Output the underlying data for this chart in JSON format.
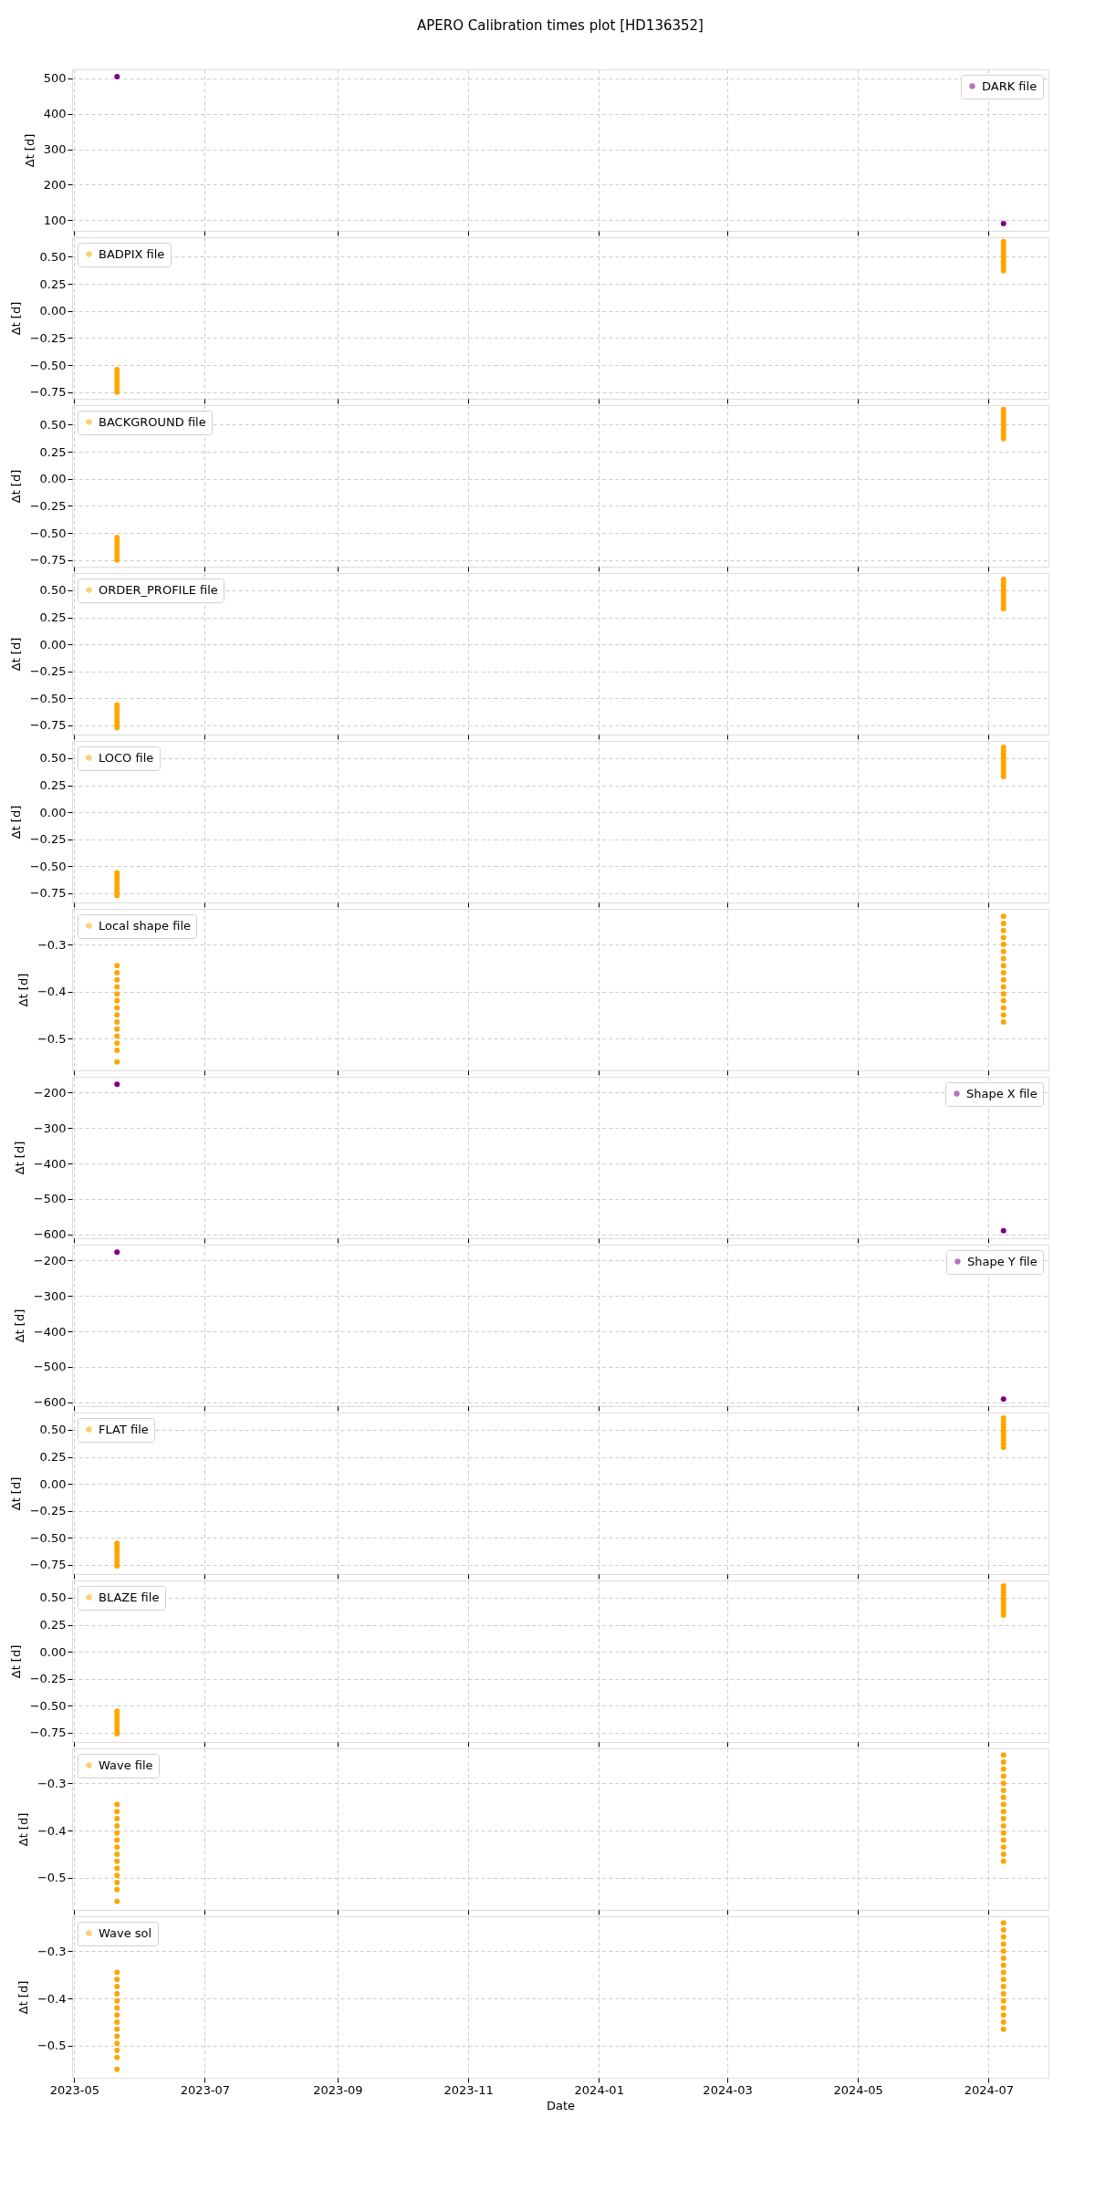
{
  "chart_data": [
    {
      "type": "scatter",
      "title": "APERO Calibration times plot [HD136352]",
      "ylabel": "Δt [d]",
      "legend": "top right",
      "grid": true,
      "marker": "circle",
      "tick_labels": "y",
      "xlim": [
        "2023-04-30",
        "2024-07-29"
      ],
      "xticks": [
        "2023-05",
        "2023-07",
        "2023-09",
        "2023-11",
        "2024-01",
        "2024-03",
        "2024-05",
        "2024-07"
      ],
      "ylim": [
        69.5,
        525.5
      ],
      "yticks": [
        100,
        200,
        300,
        400,
        500
      ],
      "series": [
        {
          "name": "DARK file",
          "color": "#800080",
          "x": [
            "2023-05-21",
            "2024-07-08"
          ],
          "values": [
            505,
            90
          ]
        }
      ]
    },
    {
      "type": "scatter",
      "ylabel": "Δt [d]",
      "legend": "top left",
      "grid": true,
      "marker": "circle",
      "tick_labels": "y",
      "xlim": [
        "2023-04-30",
        "2024-07-29"
      ],
      "xticks": [
        "2023-05",
        "2023-07",
        "2023-09",
        "2023-11",
        "2024-01",
        "2024-03",
        "2024-05",
        "2024-07"
      ],
      "ylim": [
        -0.81,
        0.68
      ],
      "yticks": [
        {
          "value": -0.75,
          "label": "−0.75"
        },
        {
          "value": -0.5,
          "label": "−0.50"
        },
        {
          "value": -0.25,
          "label": "−0.25"
        },
        {
          "value": 0,
          "label": "0.00"
        },
        {
          "value": 0.25,
          "label": "0.25"
        },
        {
          "value": 0.5,
          "label": "0.50"
        }
      ],
      "series": [
        {
          "name": "BADPIX file",
          "color": "#ffa500",
          "x": [
            "2023-05-21",
            "2023-05-21",
            "2023-05-21",
            "2023-05-21",
            "2023-05-21",
            "2023-05-21",
            "2023-05-21",
            "2023-05-21",
            "2024-07-08",
            "2024-07-08",
            "2024-07-08",
            "2024-07-08",
            "2024-07-08",
            "2024-07-08",
            "2024-07-08",
            "2024-07-08",
            "2024-07-08",
            "2024-07-08"
          ],
          "values": [
            -0.54,
            -0.57,
            -0.6,
            -0.63,
            -0.66,
            -0.69,
            -0.72,
            -0.75,
            0.37,
            0.4,
            0.43,
            0.46,
            0.49,
            0.52,
            0.55,
            0.58,
            0.61,
            0.64
          ]
        }
      ]
    },
    {
      "type": "scatter",
      "ylabel": "Δt [d]",
      "legend": "top left",
      "grid": true,
      "marker": "circle",
      "tick_labels": "y",
      "xlim": [
        "2023-04-30",
        "2024-07-29"
      ],
      "xticks": [
        "2023-05",
        "2023-07",
        "2023-09",
        "2023-11",
        "2024-01",
        "2024-03",
        "2024-05",
        "2024-07"
      ],
      "ylim": [
        -0.81,
        0.68
      ],
      "yticks": [
        {
          "value": -0.75,
          "label": "−0.75"
        },
        {
          "value": -0.5,
          "label": "−0.50"
        },
        {
          "value": -0.25,
          "label": "−0.25"
        },
        {
          "value": 0,
          "label": "0.00"
        },
        {
          "value": 0.25,
          "label": "0.25"
        },
        {
          "value": 0.5,
          "label": "0.50"
        }
      ],
      "series": [
        {
          "name": "BACKGROUND file",
          "color": "#ffa500",
          "x": [
            "2023-05-21",
            "2023-05-21",
            "2023-05-21",
            "2023-05-21",
            "2023-05-21",
            "2023-05-21",
            "2023-05-21",
            "2023-05-21",
            "2024-07-08",
            "2024-07-08",
            "2024-07-08",
            "2024-07-08",
            "2024-07-08",
            "2024-07-08",
            "2024-07-08",
            "2024-07-08",
            "2024-07-08",
            "2024-07-08"
          ],
          "values": [
            -0.54,
            -0.57,
            -0.6,
            -0.63,
            -0.66,
            -0.69,
            -0.72,
            -0.75,
            0.37,
            0.4,
            0.43,
            0.46,
            0.49,
            0.52,
            0.55,
            0.58,
            0.61,
            0.64
          ]
        }
      ]
    },
    {
      "type": "scatter",
      "ylabel": "Δt [d]",
      "legend": "top left",
      "grid": true,
      "marker": "circle",
      "tick_labels": "y",
      "xlim": [
        "2023-04-30",
        "2024-07-29"
      ],
      "xticks": [
        "2023-05",
        "2023-07",
        "2023-09",
        "2023-11",
        "2024-01",
        "2024-03",
        "2024-05",
        "2024-07"
      ],
      "ylim": [
        -0.835,
        0.66
      ],
      "yticks": [
        {
          "value": -0.75,
          "label": "−0.75"
        },
        {
          "value": -0.5,
          "label": "−0.50"
        },
        {
          "value": -0.25,
          "label": "−0.25"
        },
        {
          "value": 0,
          "label": "0.00"
        },
        {
          "value": 0.25,
          "label": "0.25"
        },
        {
          "value": 0.5,
          "label": "0.50"
        }
      ],
      "series": [
        {
          "name": "ORDER_PROFILE file",
          "color": "#ffa500",
          "x": [
            "2023-05-21",
            "2023-05-21",
            "2023-05-21",
            "2023-05-21",
            "2023-05-21",
            "2023-05-21",
            "2023-05-21",
            "2023-05-21",
            "2024-07-08",
            "2024-07-08",
            "2024-07-08",
            "2024-07-08",
            "2024-07-08",
            "2024-07-08",
            "2024-07-08",
            "2024-07-08",
            "2024-07-08",
            "2024-07-08"
          ],
          "values": [
            -0.56,
            -0.59,
            -0.62,
            -0.65,
            -0.68,
            -0.71,
            -0.74,
            -0.77,
            0.33,
            0.36,
            0.39,
            0.42,
            0.45,
            0.48,
            0.51,
            0.54,
            0.57,
            0.6
          ]
        }
      ]
    },
    {
      "type": "scatter",
      "ylabel": "Δt [d]",
      "legend": "top left",
      "grid": true,
      "marker": "circle",
      "tick_labels": "y",
      "xlim": [
        "2023-04-30",
        "2024-07-29"
      ],
      "xticks": [
        "2023-05",
        "2023-07",
        "2023-09",
        "2023-11",
        "2024-01",
        "2024-03",
        "2024-05",
        "2024-07"
      ],
      "ylim": [
        -0.835,
        0.66
      ],
      "yticks": [
        {
          "value": -0.75,
          "label": "−0.75"
        },
        {
          "value": -0.5,
          "label": "−0.50"
        },
        {
          "value": -0.25,
          "label": "−0.25"
        },
        {
          "value": 0,
          "label": "0.00"
        },
        {
          "value": 0.25,
          "label": "0.25"
        },
        {
          "value": 0.5,
          "label": "0.50"
        }
      ],
      "series": [
        {
          "name": "LOCO file",
          "color": "#ffa500",
          "x": [
            "2023-05-21",
            "2023-05-21",
            "2023-05-21",
            "2023-05-21",
            "2023-05-21",
            "2023-05-21",
            "2023-05-21",
            "2023-05-21",
            "2024-07-08",
            "2024-07-08",
            "2024-07-08",
            "2024-07-08",
            "2024-07-08",
            "2024-07-08",
            "2024-07-08",
            "2024-07-08",
            "2024-07-08",
            "2024-07-08"
          ],
          "values": [
            -0.56,
            -0.59,
            -0.62,
            -0.65,
            -0.68,
            -0.71,
            -0.74,
            -0.77,
            0.33,
            0.36,
            0.39,
            0.42,
            0.45,
            0.48,
            0.51,
            0.54,
            0.57,
            0.6
          ]
        }
      ]
    },
    {
      "type": "scatter",
      "ylabel": "Δt [d]",
      "legend": "top left",
      "grid": true,
      "marker": "circle",
      "tick_labels": "y",
      "xlim": [
        "2023-04-30",
        "2024-07-29"
      ],
      "xticks": [
        "2023-05",
        "2023-07",
        "2023-09",
        "2023-11",
        "2024-01",
        "2024-03",
        "2024-05",
        "2024-07"
      ],
      "ylim": [
        -0.568,
        -0.224
      ],
      "yticks": [
        {
          "value": -0.5,
          "label": "−0.5"
        },
        {
          "value": -0.4,
          "label": "−0.4"
        },
        {
          "value": -0.3,
          "label": "−0.3"
        }
      ],
      "series": [
        {
          "name": "Local shape file",
          "color": "#ffa500",
          "x": [
            "2023-05-21",
            "2023-05-21",
            "2023-05-21",
            "2023-05-21",
            "2023-05-21",
            "2023-05-21",
            "2023-05-21",
            "2023-05-21",
            "2023-05-21",
            "2023-05-21",
            "2023-05-21",
            "2023-05-21",
            "2023-05-21",
            "2023-05-21",
            "2024-07-08",
            "2024-07-08",
            "2024-07-08",
            "2024-07-08",
            "2024-07-08",
            "2024-07-08",
            "2024-07-08",
            "2024-07-08",
            "2024-07-08",
            "2024-07-08",
            "2024-07-08",
            "2024-07-08",
            "2024-07-08",
            "2024-07-08",
            "2024-07-08",
            "2024-07-08"
          ],
          "values": [
            -0.345,
            -0.36,
            -0.375,
            -0.39,
            -0.405,
            -0.42,
            -0.435,
            -0.45,
            -0.465,
            -0.48,
            -0.495,
            -0.51,
            -0.525,
            -0.55,
            -0.24,
            -0.255,
            -0.27,
            -0.285,
            -0.3,
            -0.315,
            -0.33,
            -0.345,
            -0.36,
            -0.375,
            -0.39,
            -0.405,
            -0.42,
            -0.435,
            -0.45,
            -0.465
          ]
        }
      ]
    },
    {
      "type": "scatter",
      "ylabel": "Δt [d]",
      "legend": "top right",
      "grid": true,
      "marker": "circle",
      "tick_labels": "y",
      "xlim": [
        "2023-04-30",
        "2024-07-29"
      ],
      "xticks": [
        "2023-05",
        "2023-07",
        "2023-09",
        "2023-11",
        "2024-01",
        "2024-03",
        "2024-05",
        "2024-07"
      ],
      "ylim": [
        -611,
        -155
      ],
      "yticks": [
        {
          "value": -600,
          "label": "−600"
        },
        {
          "value": -500,
          "label": "−500"
        },
        {
          "value": -400,
          "label": "−400"
        },
        {
          "value": -300,
          "label": "−300"
        },
        {
          "value": -200,
          "label": "−200"
        }
      ],
      "series": [
        {
          "name": "Shape X file",
          "color": "#800080",
          "x": [
            "2023-05-21",
            "2024-07-08"
          ],
          "values": [
            -176,
            -590
          ]
        }
      ]
    },
    {
      "type": "scatter",
      "ylabel": "Δt [d]",
      "legend": "top right",
      "grid": true,
      "marker": "circle",
      "tick_labels": "y",
      "xlim": [
        "2023-04-30",
        "2024-07-29"
      ],
      "xticks": [
        "2023-05",
        "2023-07",
        "2023-09",
        "2023-11",
        "2024-01",
        "2024-03",
        "2024-05",
        "2024-07"
      ],
      "ylim": [
        -611,
        -155
      ],
      "yticks": [
        {
          "value": -600,
          "label": "−600"
        },
        {
          "value": -500,
          "label": "−500"
        },
        {
          "value": -400,
          "label": "−400"
        },
        {
          "value": -300,
          "label": "−300"
        },
        {
          "value": -200,
          "label": "−200"
        }
      ],
      "series": [
        {
          "name": "Shape Y file",
          "color": "#800080",
          "x": [
            "2023-05-21",
            "2024-07-08"
          ],
          "values": [
            -176,
            -591
          ]
        }
      ]
    },
    {
      "type": "scatter",
      "ylabel": "Δt [d]",
      "legend": "top left",
      "grid": true,
      "marker": "circle",
      "tick_labels": "y",
      "xlim": [
        "2023-04-30",
        "2024-07-29"
      ],
      "xticks": [
        "2023-05",
        "2023-07",
        "2023-09",
        "2023-11",
        "2024-01",
        "2024-03",
        "2024-05",
        "2024-07"
      ],
      "ylim": [
        -0.835,
        0.66
      ],
      "yticks": [
        {
          "value": -0.75,
          "label": "−0.75"
        },
        {
          "value": -0.5,
          "label": "−0.50"
        },
        {
          "value": -0.25,
          "label": "−0.25"
        },
        {
          "value": 0,
          "label": "0.00"
        },
        {
          "value": 0.25,
          "label": "0.25"
        },
        {
          "value": 0.5,
          "label": "0.50"
        }
      ],
      "series": [
        {
          "name": "FLAT file",
          "color": "#ffa500",
          "x": [
            "2023-05-21",
            "2023-05-21",
            "2023-05-21",
            "2023-05-21",
            "2023-05-21",
            "2023-05-21",
            "2023-05-21",
            "2023-05-21",
            "2024-07-08",
            "2024-07-08",
            "2024-07-08",
            "2024-07-08",
            "2024-07-08",
            "2024-07-08",
            "2024-07-08",
            "2024-07-08",
            "2024-07-08",
            "2024-07-08"
          ],
          "values": [
            -0.55,
            -0.58,
            -0.61,
            -0.64,
            -0.67,
            -0.7,
            -0.73,
            -0.76,
            0.34,
            0.37,
            0.4,
            0.43,
            0.46,
            0.49,
            0.52,
            0.55,
            0.58,
            0.61
          ]
        }
      ]
    },
    {
      "type": "scatter",
      "ylabel": "Δt [d]",
      "legend": "top left",
      "grid": true,
      "marker": "circle",
      "tick_labels": "y",
      "xlim": [
        "2023-04-30",
        "2024-07-29"
      ],
      "xticks": [
        "2023-05",
        "2023-07",
        "2023-09",
        "2023-11",
        "2024-01",
        "2024-03",
        "2024-05",
        "2024-07"
      ],
      "ylim": [
        -0.835,
        0.66
      ],
      "yticks": [
        {
          "value": -0.75,
          "label": "−0.75"
        },
        {
          "value": -0.5,
          "label": "−0.50"
        },
        {
          "value": -0.25,
          "label": "−0.25"
        },
        {
          "value": 0,
          "label": "0.00"
        },
        {
          "value": 0.25,
          "label": "0.25"
        },
        {
          "value": 0.5,
          "label": "0.50"
        }
      ],
      "series": [
        {
          "name": "BLAZE file",
          "color": "#ffa500",
          "x": [
            "2023-05-21",
            "2023-05-21",
            "2023-05-21",
            "2023-05-21",
            "2023-05-21",
            "2023-05-21",
            "2023-05-21",
            "2023-05-21",
            "2024-07-08",
            "2024-07-08",
            "2024-07-08",
            "2024-07-08",
            "2024-07-08",
            "2024-07-08",
            "2024-07-08",
            "2024-07-08",
            "2024-07-08",
            "2024-07-08"
          ],
          "values": [
            -0.55,
            -0.58,
            -0.61,
            -0.64,
            -0.67,
            -0.7,
            -0.73,
            -0.76,
            0.34,
            0.37,
            0.4,
            0.43,
            0.46,
            0.49,
            0.52,
            0.55,
            0.58,
            0.61
          ]
        }
      ]
    },
    {
      "type": "scatter",
      "ylabel": "Δt [d]",
      "legend": "top left",
      "grid": true,
      "marker": "circle",
      "tick_labels": "y",
      "xlim": [
        "2023-04-30",
        "2024-07-29"
      ],
      "xticks": [
        "2023-05",
        "2023-07",
        "2023-09",
        "2023-11",
        "2024-01",
        "2024-03",
        "2024-05",
        "2024-07"
      ],
      "ylim": [
        -0.568,
        -0.226
      ],
      "yticks": [
        {
          "value": -0.5,
          "label": "−0.5"
        },
        {
          "value": -0.4,
          "label": "−0.4"
        },
        {
          "value": -0.3,
          "label": "−0.3"
        }
      ],
      "series": [
        {
          "name": "Wave file",
          "color": "#ffa500",
          "x": [
            "2023-05-21",
            "2023-05-21",
            "2023-05-21",
            "2023-05-21",
            "2023-05-21",
            "2023-05-21",
            "2023-05-21",
            "2023-05-21",
            "2023-05-21",
            "2023-05-21",
            "2023-05-21",
            "2023-05-21",
            "2023-05-21",
            "2023-05-21",
            "2024-07-08",
            "2024-07-08",
            "2024-07-08",
            "2024-07-08",
            "2024-07-08",
            "2024-07-08",
            "2024-07-08",
            "2024-07-08",
            "2024-07-08",
            "2024-07-08",
            "2024-07-08",
            "2024-07-08",
            "2024-07-08",
            "2024-07-08",
            "2024-07-08",
            "2024-07-08"
          ],
          "values": [
            -0.345,
            -0.36,
            -0.375,
            -0.39,
            -0.405,
            -0.42,
            -0.435,
            -0.45,
            -0.465,
            -0.48,
            -0.495,
            -0.51,
            -0.525,
            -0.55,
            -0.24,
            -0.255,
            -0.27,
            -0.285,
            -0.3,
            -0.315,
            -0.33,
            -0.345,
            -0.36,
            -0.375,
            -0.39,
            -0.405,
            -0.42,
            -0.435,
            -0.45,
            -0.465
          ]
        }
      ]
    },
    {
      "type": "scatter",
      "xlabel": "Date",
      "ylabel": "Δt [d]",
      "legend": "top left",
      "grid": true,
      "marker": "circle",
      "xlim": [
        "2023-04-30",
        "2024-07-29"
      ],
      "xticks": [
        "2023-05",
        "2023-07",
        "2023-09",
        "2023-11",
        "2024-01",
        "2024-03",
        "2024-05",
        "2024-07"
      ],
      "ylim": [
        -0.568,
        -0.226
      ],
      "yticks": [
        {
          "value": -0.5,
          "label": "−0.5"
        },
        {
          "value": -0.4,
          "label": "−0.4"
        },
        {
          "value": -0.3,
          "label": "−0.3"
        }
      ],
      "series": [
        {
          "name": "Wave sol",
          "color": "#ffa500",
          "x": [
            "2023-05-21",
            "2023-05-21",
            "2023-05-21",
            "2023-05-21",
            "2023-05-21",
            "2023-05-21",
            "2023-05-21",
            "2023-05-21",
            "2023-05-21",
            "2023-05-21",
            "2023-05-21",
            "2023-05-21",
            "2023-05-21",
            "2023-05-21",
            "2024-07-08",
            "2024-07-08",
            "2024-07-08",
            "2024-07-08",
            "2024-07-08",
            "2024-07-08",
            "2024-07-08",
            "2024-07-08",
            "2024-07-08",
            "2024-07-08",
            "2024-07-08",
            "2024-07-08",
            "2024-07-08",
            "2024-07-08",
            "2024-07-08",
            "2024-07-08"
          ],
          "values": [
            -0.345,
            -0.36,
            -0.375,
            -0.39,
            -0.405,
            -0.42,
            -0.435,
            -0.45,
            -0.465,
            -0.48,
            -0.495,
            -0.51,
            -0.525,
            -0.55,
            -0.24,
            -0.255,
            -0.27,
            -0.285,
            -0.3,
            -0.315,
            -0.33,
            -0.345,
            -0.36,
            -0.375,
            -0.39,
            -0.405,
            -0.42,
            -0.435,
            -0.45,
            -0.465
          ]
        }
      ]
    }
  ]
}
